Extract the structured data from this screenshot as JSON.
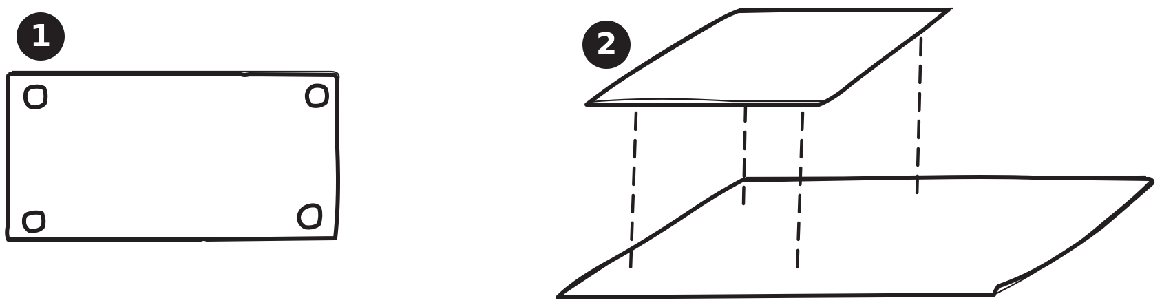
{
  "steps": [
    {
      "label": "1"
    },
    {
      "label": "2"
    }
  ],
  "ink_color": "#231f20",
  "badge_text_color": "#ffffff",
  "icons": {
    "panel_front": "rectangle-with-four-corner-holes",
    "panel_top": "parallelogram-small",
    "panel_bottom": "parallelogram-large",
    "guides": "dashed-alignment-lines"
  }
}
